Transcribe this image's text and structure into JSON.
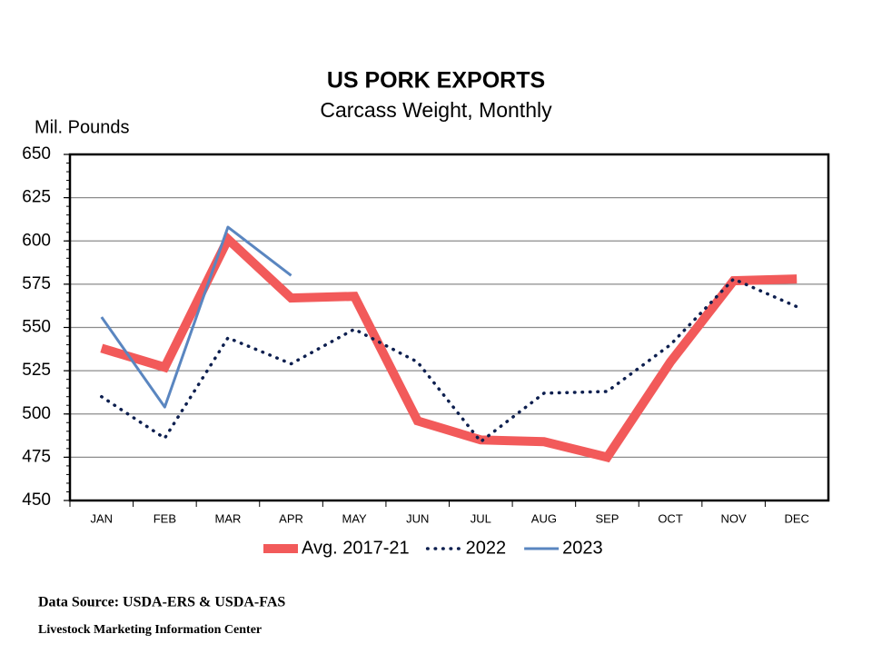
{
  "chart_data": {
    "type": "line",
    "title": "US PORK EXPORTS",
    "subtitle": "Carcass Weight, Monthly",
    "y_label": "Mil. Pounds",
    "categories": [
      "JAN",
      "FEB",
      "MAR",
      "APR",
      "MAY",
      "JUN",
      "JUL",
      "AUG",
      "SEP",
      "OCT",
      "NOV",
      "DEC"
    ],
    "series": [
      {
        "name": "Avg. 2017-21",
        "color": "#f25a5a",
        "values": [
          538,
          527,
          601,
          567,
          568,
          496,
          485,
          484,
          475,
          530,
          577,
          578
        ]
      },
      {
        "name": "2022",
        "color": "#0d1f4f",
        "values": [
          510,
          486,
          544,
          529,
          549,
          530,
          484,
          512,
          513,
          540,
          578,
          562
        ]
      },
      {
        "name": "2023",
        "color": "#5a86c0",
        "values": [
          556,
          504,
          608,
          580,
          null,
          null,
          null,
          null,
          null,
          null,
          null,
          null
        ]
      }
    ],
    "ylim": [
      450,
      650
    ],
    "yticks": [
      450,
      475,
      500,
      525,
      550,
      575,
      600,
      625,
      650
    ],
    "grid": true,
    "legend": "bottom",
    "source": "Data Source:  USDA-ERS & USDA-FAS",
    "credit": "Livestock Marketing Information  Center"
  }
}
